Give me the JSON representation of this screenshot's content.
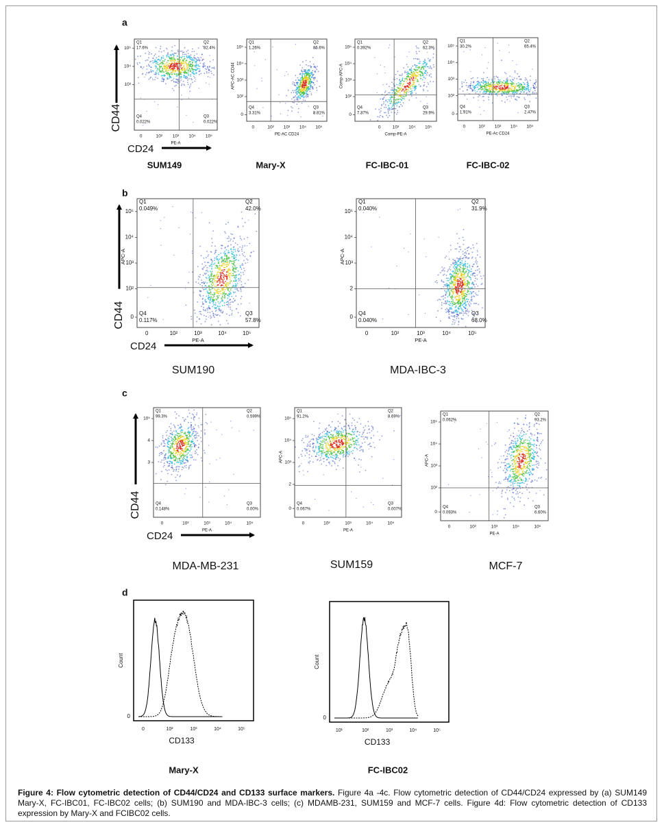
{
  "figure": {
    "panels": [
      {
        "label": "a",
        "plots": [
          {
            "name": "SUM149",
            "x_label": "PE-A",
            "xticks": [
              "0",
              "10²",
              "10³",
              "10⁴",
              "10⁵"
            ],
            "yticks": [
              "10³",
              "10⁴",
              "10⁵"
            ],
            "quadrants": [
              {
                "id": "Q1",
                "value": "17.6%"
              },
              {
                "id": "Q2",
                "value": "82.4%"
              },
              {
                "id": "Q3",
                "value": "0.022%"
              },
              {
                "id": "Q4",
                "value": "0.022%"
              }
            ],
            "markers": {
              "y": "CD44",
              "x": "CD24"
            }
          },
          {
            "name": "Mary-X",
            "x_label": "PE-AC CD24",
            "y_label": "APC-AC CD44",
            "xticks": [
              "0",
              "10²",
              "10³",
              "10⁴",
              "10⁵"
            ],
            "yticks": [
              "0",
              "10²",
              "10³",
              "10⁴",
              "10⁵"
            ],
            "quadrants": [
              {
                "id": "Q1",
                "value": "1.26%"
              },
              {
                "id": "Q2",
                "value": "86.6%"
              },
              {
                "id": "Q3",
                "value": "8.81%"
              },
              {
                "id": "Q4",
                "value": "3.31%"
              }
            ]
          },
          {
            "name": "FC-IBC-01",
            "x_label": "Comp-PE-A",
            "y_label": "Comp-APC-A",
            "xticks": [
              "0",
              "10³",
              "10⁴",
              "10⁵"
            ],
            "yticks": [
              "0",
              "10²",
              "10³",
              "10⁴",
              "10⁵"
            ],
            "quadrants": [
              {
                "id": "Q1",
                "value": "0.392%"
              },
              {
                "id": "Q2",
                "value": "62.3%"
              },
              {
                "id": "Q3",
                "value": "29.9%"
              },
              {
                "id": "Q4",
                "value": "7.37%"
              }
            ]
          },
          {
            "name": "FC-IBC-02",
            "x_label": "PE-Ac CD24",
            "xticks": [
              "0",
              "10²",
              "10³",
              "10⁴",
              "10⁵"
            ],
            "yticks": [
              "0",
              "10²",
              "10³",
              "10⁴",
              "10⁵"
            ],
            "quadrants": [
              {
                "id": "Q1",
                "value": "30.2%"
              },
              {
                "id": "Q2",
                "value": "65.4%"
              },
              {
                "id": "Q3",
                "value": "2.47%"
              },
              {
                "id": "Q4",
                "value": "1.91%"
              }
            ]
          }
        ]
      },
      {
        "label": "b",
        "plots": [
          {
            "name": "SUM190",
            "x_label": "PE-A",
            "y_label": "APC-A",
            "xticks": [
              "0",
              "10²",
              "10³",
              "10⁴",
              "10⁵"
            ],
            "yticks": [
              "0",
              "10²",
              "10³",
              "10⁴",
              "10⁵"
            ],
            "quadrants": [
              {
                "id": "Q1",
                "value": "0.049%"
              },
              {
                "id": "Q2",
                "value": "42.0%"
              },
              {
                "id": "Q3",
                "value": "57.8%"
              },
              {
                "id": "Q4",
                "value": "0.117%"
              }
            ],
            "markers": {
              "y": "CD44",
              "x": "CD24"
            }
          },
          {
            "name": "MDA-IBC-3",
            "x_label": "PE-A",
            "y_label": "APC-A",
            "xticks": [
              "0",
              "10²",
              "10³",
              "10⁴",
              "10⁵"
            ],
            "yticks": [
              "0",
              "2",
              "10³",
              "10⁴",
              "10⁵"
            ],
            "quadrants": [
              {
                "id": "Q1",
                "value": "0.040%"
              },
              {
                "id": "Q2",
                "value": "31.9%"
              },
              {
                "id": "Q3",
                "value": "68.0%"
              },
              {
                "id": "Q4",
                "value": "0.040%"
              }
            ]
          }
        ]
      },
      {
        "label": "c",
        "plots": [
          {
            "name": "MDA-MB-231",
            "x_label": "PE-A",
            "xticks": [
              "0",
              "10²",
              "10³",
              "10⁴",
              "10⁵"
            ],
            "yticks": [
              "3",
              "4",
              "10⁵"
            ],
            "quadrants": [
              {
                "id": "Q1",
                "value": "99.3%"
              },
              {
                "id": "Q2",
                "value": "0.599%"
              },
              {
                "id": "Q3",
                "value": "0.00%"
              },
              {
                "id": "Q4",
                "value": "0.148%"
              }
            ],
            "markers": {
              "y": "CD44",
              "x": "CD24"
            }
          },
          {
            "name": "SUM159",
            "x_label": "PE-A",
            "y_label": "APC-A",
            "xticks": [
              "0",
              "10²",
              "10³",
              "10⁴",
              "10⁵"
            ],
            "yticks": [
              "0",
              "2",
              "10³",
              "10⁴",
              "10⁵"
            ],
            "quadrants": [
              {
                "id": "Q1",
                "value": "91.2%"
              },
              {
                "id": "Q2",
                "value": "8.69%"
              },
              {
                "id": "Q3",
                "value": "0.007%"
              },
              {
                "id": "Q4",
                "value": "0.067%"
              }
            ]
          },
          {
            "name": "MCF-7",
            "x_label": "PE-A",
            "y_label": "APC-A",
            "xticks": [
              "0",
              "10²",
              "10³",
              "10⁴",
              "10⁵"
            ],
            "yticks": [
              "0",
              "10²",
              "10³",
              "10⁴",
              "10⁵"
            ],
            "quadrants": [
              {
                "id": "Q1",
                "value": "0.062%"
              },
              {
                "id": "Q2",
                "value": "93.2%"
              },
              {
                "id": "Q3",
                "value": "6.60%"
              },
              {
                "id": "Q4",
                "value": "0.093%"
              }
            ]
          }
        ]
      }
    ],
    "histograms": {
      "label": "d",
      "plots": [
        {
          "name": "Mary-X",
          "x_label": "CD133",
          "y_label": "Count",
          "xticks": [
            "0",
            "10²",
            "10³",
            "10⁴",
            "10⁵"
          ],
          "yticks": [
            "0"
          ]
        },
        {
          "name": "FC-IBC02",
          "x_label": "CD133",
          "y_label": "Count",
          "xticks": [
            "10¹",
            "10²",
            "10³",
            "10⁴",
            "10⁵"
          ],
          "yticks": [
            "0"
          ]
        }
      ]
    },
    "caption": {
      "title": "Figure 4: Flow cytometric detection of CD44/CD24 and CD133 surface markers.",
      "text": " Figure 4a -4c. Flow cytometric detection of CD44/CD24 expressed by (a) SUM149 Mary-X, FC-IBC01, FC-IBC02 cells; (b) SUM190 and MDA-IBC-3 cells; (c) MDAMB-231, SUM159 and MCF-7 cells. Figure 4d: Flow cytometric detection of CD133 expression by Mary-X and FCIBC02 cells."
    }
  }
}
